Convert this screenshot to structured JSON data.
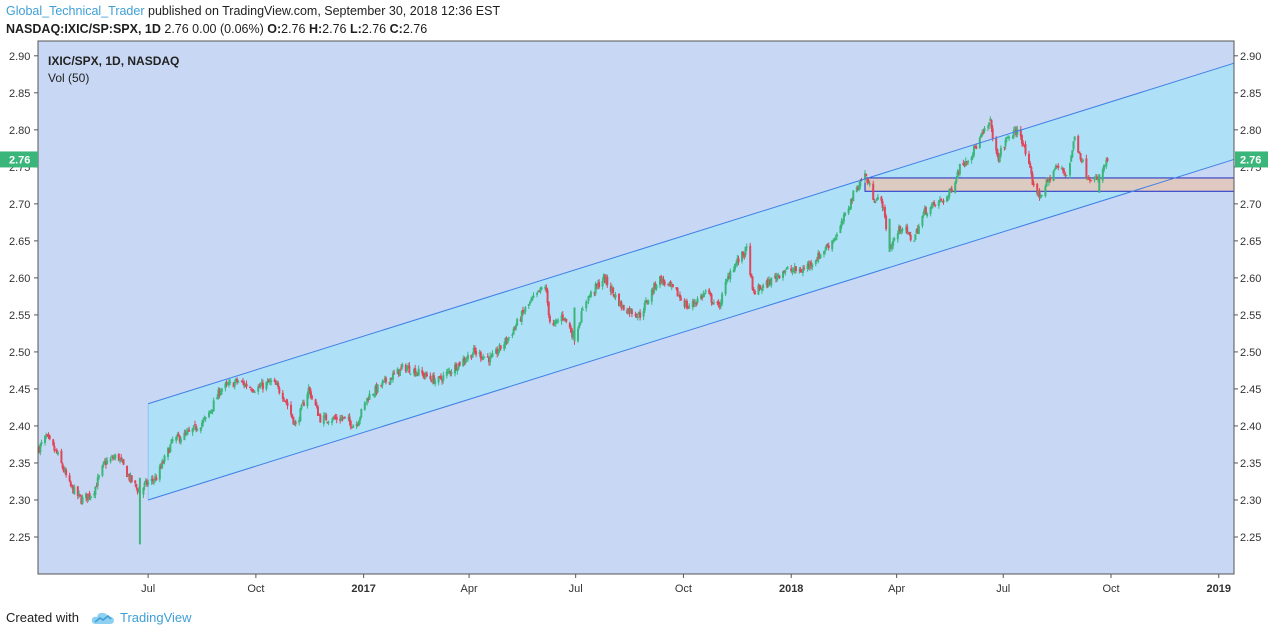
{
  "header": {
    "author": "Global_Technical_Trader",
    "published": "published on TradingView.com, September 30, 2018 12:36 EST",
    "symbol": "NASDAQ:IXIC/SP:SPX, 1D",
    "change": "2.76 0.00 (0.06%)",
    "ohlc": {
      "o_label": "O:",
      "o": "2.76",
      "h_label": "H:",
      "h": "2.76",
      "l_label": "L:",
      "l": "2.76",
      "c_label": "C:",
      "c": "2.76"
    }
  },
  "legend": {
    "title": "IXIC/SPX, 1D, NASDAQ",
    "volume": "Vol (50)"
  },
  "footer": {
    "created_with": "Created with",
    "brand": "TradingView"
  },
  "colors": {
    "up": "#3bb67a",
    "down": "#e0455a",
    "channel_line": "#3d7fe6",
    "channel_fill": "#aee0f8",
    "background": "#c8d8f4",
    "zone_fill": "#e3c7b6",
    "zone_border": "#1f2cc2",
    "price_label": "#3bb67a"
  },
  "chart_data": {
    "type": "candlestick",
    "title": "IXIC/SPX, 1D, NASDAQ",
    "current_price_label": "2.76",
    "y_ticks": [
      "2.25",
      "2.30",
      "2.35",
      "2.40",
      "2.45",
      "2.50",
      "2.55",
      "2.60",
      "2.65",
      "2.70",
      "2.75",
      "2.80",
      "2.85",
      "2.90"
    ],
    "ylim": [
      2.2,
      2.92
    ],
    "x_ticks": [
      {
        "label": "Jul",
        "t": "2016-07-01",
        "bold": false
      },
      {
        "label": "Oct",
        "t": "2016-10-01",
        "bold": false
      },
      {
        "label": "2017",
        "t": "2017-01-01",
        "bold": true
      },
      {
        "label": "Apr",
        "t": "2017-04-01",
        "bold": false
      },
      {
        "label": "Jul",
        "t": "2017-07-01",
        "bold": false
      },
      {
        "label": "Oct",
        "t": "2017-10-01",
        "bold": false
      },
      {
        "label": "2018",
        "t": "2018-01-01",
        "bold": true
      },
      {
        "label": "Apr",
        "t": "2018-04-01",
        "bold": false
      },
      {
        "label": "Jul",
        "t": "2018-07-01",
        "bold": false
      },
      {
        "label": "Oct",
        "t": "2018-10-01",
        "bold": false
      },
      {
        "label": "2019",
        "t": "2019-01-01",
        "bold": true
      }
    ],
    "xlim": [
      "2016-03-29",
      "2019-01-14"
    ],
    "price_path": [
      [
        "2016-03-30",
        2.37
      ],
      [
        "2016-04-05",
        2.385
      ],
      [
        "2016-04-15",
        2.36
      ],
      [
        "2016-04-25",
        2.32
      ],
      [
        "2016-05-05",
        2.3
      ],
      [
        "2016-05-15",
        2.31
      ],
      [
        "2016-05-25",
        2.35
      ],
      [
        "2016-06-05",
        2.36
      ],
      [
        "2016-06-15",
        2.33
      ],
      [
        "2016-06-24",
        2.31
      ],
      [
        "2016-06-28",
        2.32
      ],
      [
        "2016-07-08",
        2.33
      ],
      [
        "2016-07-22",
        2.38
      ],
      [
        "2016-08-05",
        2.39
      ],
      [
        "2016-08-20",
        2.41
      ],
      [
        "2016-09-01",
        2.45
      ],
      [
        "2016-09-15",
        2.46
      ],
      [
        "2016-10-01",
        2.45
      ],
      [
        "2016-10-15",
        2.46
      ],
      [
        "2016-10-25",
        2.44
      ],
      [
        "2016-11-04",
        2.4
      ],
      [
        "2016-11-15",
        2.45
      ],
      [
        "2016-11-25",
        2.41
      ],
      [
        "2016-12-15",
        2.41
      ],
      [
        "2016-12-25",
        2.4
      ],
      [
        "2017-01-05",
        2.44
      ],
      [
        "2017-01-20",
        2.46
      ],
      [
        "2017-02-05",
        2.48
      ],
      [
        "2017-02-20",
        2.47
      ],
      [
        "2017-03-05",
        2.46
      ],
      [
        "2017-03-20",
        2.48
      ],
      [
        "2017-04-05",
        2.5
      ],
      [
        "2017-04-20",
        2.49
      ],
      [
        "2017-05-05",
        2.52
      ],
      [
        "2017-05-20",
        2.56
      ],
      [
        "2017-06-05",
        2.59
      ],
      [
        "2017-06-10",
        2.53
      ],
      [
        "2017-06-20",
        2.55
      ],
      [
        "2017-06-30",
        2.52
      ],
      [
        "2017-07-10",
        2.57
      ],
      [
        "2017-07-25",
        2.6
      ],
      [
        "2017-08-10",
        2.56
      ],
      [
        "2017-08-25",
        2.55
      ],
      [
        "2017-09-10",
        2.6
      ],
      [
        "2017-09-25",
        2.58
      ],
      [
        "2017-10-05",
        2.56
      ],
      [
        "2017-10-20",
        2.58
      ],
      [
        "2017-10-31",
        2.56
      ],
      [
        "2017-11-10",
        2.61
      ],
      [
        "2017-11-25",
        2.64
      ],
      [
        "2017-11-29",
        2.58
      ],
      [
        "2017-12-10",
        2.59
      ],
      [
        "2017-12-25",
        2.61
      ],
      [
        "2018-01-10",
        2.61
      ],
      [
        "2018-01-25",
        2.63
      ],
      [
        "2018-02-10",
        2.66
      ],
      [
        "2018-02-25",
        2.72
      ],
      [
        "2018-03-05",
        2.74
      ],
      [
        "2018-03-12",
        2.71
      ],
      [
        "2018-03-20",
        2.7
      ],
      [
        "2018-03-26",
        2.64
      ],
      [
        "2018-04-05",
        2.67
      ],
      [
        "2018-04-15",
        2.65
      ],
      [
        "2018-04-25",
        2.69
      ],
      [
        "2018-05-05",
        2.7
      ],
      [
        "2018-05-15",
        2.71
      ],
      [
        "2018-05-25",
        2.75
      ],
      [
        "2018-06-05",
        2.77
      ],
      [
        "2018-06-12",
        2.79
      ],
      [
        "2018-06-20",
        2.81
      ],
      [
        "2018-06-26",
        2.76
      ],
      [
        "2018-07-05",
        2.79
      ],
      [
        "2018-07-15",
        2.8
      ],
      [
        "2018-07-26",
        2.73
      ],
      [
        "2018-08-01",
        2.71
      ],
      [
        "2018-08-15",
        2.75
      ],
      [
        "2018-08-25",
        2.74
      ],
      [
        "2018-08-31",
        2.79
      ],
      [
        "2018-09-10",
        2.74
      ],
      [
        "2018-09-20",
        2.73
      ],
      [
        "2018-09-28",
        2.76
      ]
    ],
    "channel": {
      "upper": [
        [
          "2016-07-01",
          2.43
        ],
        [
          "2019-01-14",
          2.89
        ]
      ],
      "lower": [
        [
          "2016-07-01",
          2.3
        ],
        [
          "2019-01-14",
          2.76
        ]
      ]
    },
    "zone": {
      "t0": "2018-03-05",
      "t1": "2019-01-14",
      "y0": 2.717,
      "y1": 2.735
    }
  }
}
